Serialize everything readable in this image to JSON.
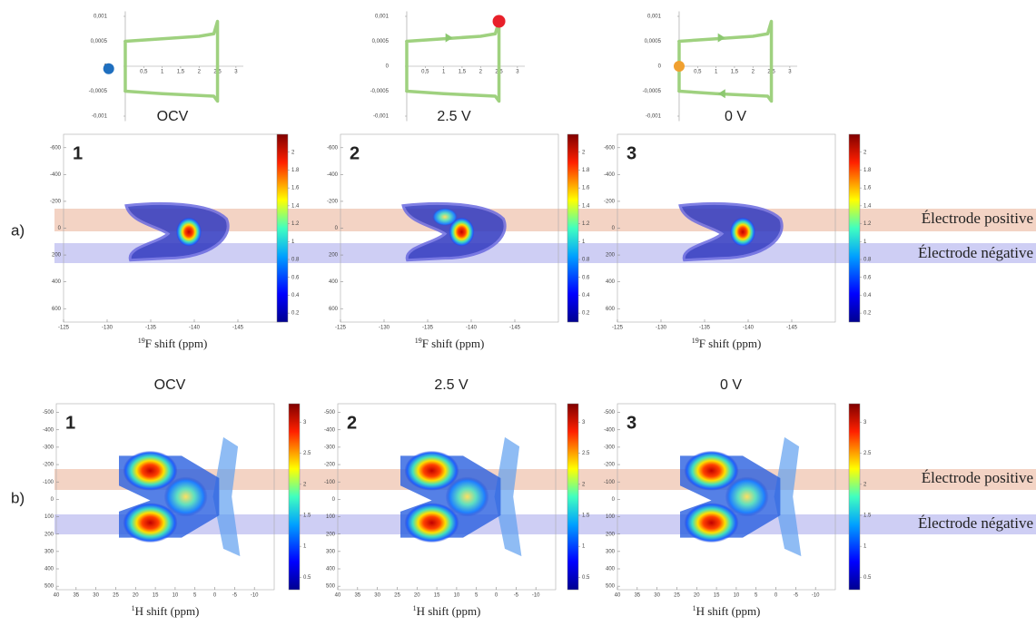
{
  "cv": {
    "xlim": [
      -0.6,
      3.2
    ],
    "ylim": [
      -0.0011,
      0.0011
    ],
    "xticks": [
      {
        "value": 0.5,
        "label": "0,5"
      },
      1,
      {
        "value": 1.5,
        "label": "1,5"
      },
      2,
      {
        "value": 2.5,
        "label": "2,5"
      },
      3
    ],
    "yticks": [
      {
        "value": 0.001,
        "label": "0,001"
      },
      {
        "value": 0.0005,
        "label": "0,0005"
      },
      0,
      {
        "value": -0.0005,
        "label": "-0,0005"
      },
      {
        "value": -0.001,
        "label": "-0,001"
      }
    ],
    "curve": {
      "x": [
        0,
        0,
        1,
        2,
        2.4,
        2.5,
        2.5,
        2.4,
        1,
        0,
        0
      ],
      "y": [
        0,
        0.0005,
        0.00055,
        0.0006,
        0.00065,
        0.0009,
        -0.0007,
        -0.0006,
        -0.00055,
        -0.0005,
        0
      ]
    },
    "panels": [
      {
        "title": "OCV",
        "marker": {
          "x": -0.45,
          "y": -5e-05,
          "color": "#1f6fbf"
        }
      },
      {
        "title": "2.5 V",
        "marker": {
          "x": 2.5,
          "y": 0.0009,
          "color": "#e8202a"
        }
      },
      {
        "title": "0 V",
        "marker": {
          "x": 0,
          "y": 0,
          "color": "#f0a030"
        }
      }
    ]
  },
  "bands": {
    "positive": "Électrode positive",
    "negative": "Électrode négative"
  },
  "rows": [
    {
      "label": "a)",
      "xlabel": {
        "isotope": "19",
        "text": "F shift (ppm)"
      },
      "xlim": [
        -125,
        -150
      ],
      "xticks": [
        -125,
        -130,
        -135,
        -140,
        -145
      ],
      "ylim": [
        -700,
        700
      ],
      "yticks": [
        -600,
        -400,
        -200,
        0,
        200,
        400,
        600
      ],
      "clim": [
        0.1,
        2.2
      ],
      "cticks": [
        0.2,
        0.4,
        0.6,
        0.8,
        1,
        1.2,
        1.4,
        1.6,
        1.8,
        2
      ],
      "panels": [
        {
          "number": "1",
          "color": "#1f6fbf"
        },
        {
          "number": "2",
          "color": "#e8202a"
        },
        {
          "number": "3",
          "color": "#f0a030"
        }
      ]
    },
    {
      "label": "b)",
      "xlabel": {
        "isotope": "1",
        "text": "H shift (ppm)"
      },
      "xlim": [
        40,
        -15
      ],
      "xticks": [
        40,
        35,
        30,
        25,
        20,
        15,
        10,
        5,
        0,
        -5,
        -10
      ],
      "ylim": [
        -550,
        520
      ],
      "yticks": [
        -500,
        -400,
        -300,
        -200,
        -100,
        0,
        100,
        200,
        300,
        400,
        500
      ],
      "clim": [
        0.3,
        3.3
      ],
      "cticks": [
        0.5,
        1,
        1.5,
        2,
        2.5,
        3
      ],
      "panels": [
        {
          "number": "1",
          "color": "#1f6fbf",
          "title": "OCV"
        },
        {
          "number": "2",
          "color": "#e8202a",
          "title": "2.5 V"
        },
        {
          "number": "3",
          "color": "#f0a030",
          "title": "0 V"
        }
      ]
    }
  ]
}
